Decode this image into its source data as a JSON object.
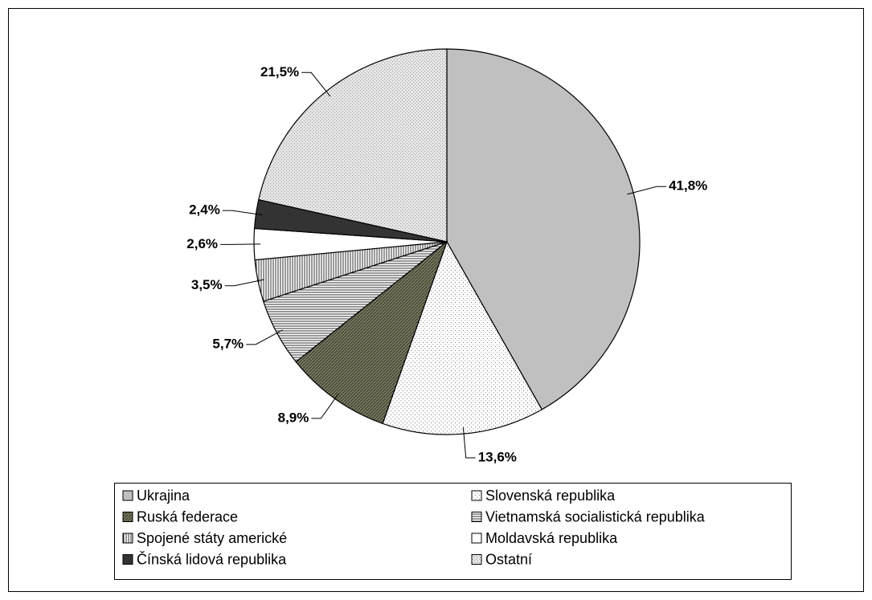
{
  "chart_data": {
    "type": "pie",
    "categories": [
      "Ukrajina",
      "Slovenská republika",
      "Ruská federace",
      "Vietnamská socialistická republika",
      "Spojené státy americké",
      "Moldavská republika",
      "Čínská lidová republika",
      "Ostatní"
    ],
    "values": [
      41.8,
      13.6,
      8.9,
      5.7,
      3.5,
      2.6,
      2.4,
      21.5
    ],
    "value_labels": [
      "41,8%",
      "13,6%",
      "8,9%",
      "5,7%",
      "3,5%",
      "2,6%",
      "2,4%",
      "21,5%"
    ],
    "colors": [
      "#c0c0c0",
      "#ffffff",
      "#7a7a5c",
      "#ffffff",
      "#ffffff",
      "#ffffff",
      "#333333",
      "#e6e6e6"
    ],
    "legend": "bottom"
  }
}
